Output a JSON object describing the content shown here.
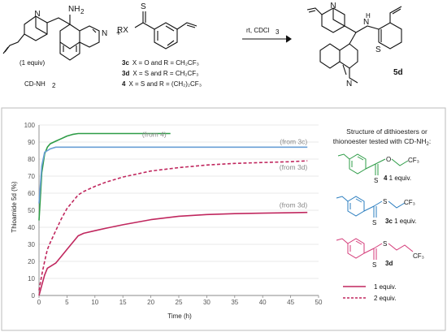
{
  "reaction": {
    "reactant1_label": "CD-NH",
    "reactant1_sub": "2",
    "reactant1_equiv": "(1 equiv)",
    "plus": "+",
    "reagent_group": "RX",
    "conditions": "rt, CDCl",
    "conditions_sub": "3",
    "product_label": "5d",
    "atoms": {
      "N": "N",
      "H": "H",
      "NH2": "NH",
      "S": "S"
    },
    "compounds": [
      {
        "id": "3c",
        "desc": "X = O and R = CH₂CF₃"
      },
      {
        "id": "3d",
        "desc": "X = S and R = CH₂CF₃"
      },
      {
        "id": "4",
        "desc": "X = S and R = (CH₂)₂CF₃"
      }
    ]
  },
  "structures_panel": {
    "title_line1": "Structure of dithioesters or",
    "title_line2": "thionoester tested with CD-NH",
    "title_sub": "2",
    "title_end": ":",
    "items": [
      {
        "num": "4",
        "equiv": " 1 equiv.",
        "color": "#2e9c47",
        "atom_O": "O",
        "atom_S": "S",
        "cf3": "CF₃"
      },
      {
        "num": "3c",
        "equiv": " 1 equiv.",
        "color": "#2a7dbf",
        "atom_S1": "S",
        "atom_S2": "S",
        "cf3": "CF₃"
      },
      {
        "num": "3d",
        "equiv": "",
        "color": "#d43a78",
        "atom_S1": "S",
        "atom_S2": "S",
        "cf3": "CF₃"
      }
    ],
    "legend": [
      {
        "label": "1 equiv.",
        "style": "solid"
      },
      {
        "label": "2 equiv.",
        "style": "dashed"
      }
    ]
  },
  "chart_data": {
    "type": "line",
    "xlabel": "Time (h)",
    "ylabel": "Thioamide 5d (%)",
    "xlim": [
      0,
      50
    ],
    "ylim": [
      0,
      100
    ],
    "xticks": [
      0,
      5,
      10,
      15,
      20,
      25,
      30,
      35,
      40,
      45,
      50
    ],
    "yticks": [
      0,
      10,
      20,
      30,
      40,
      50,
      60,
      70,
      80,
      90,
      100
    ],
    "grid": true,
    "series": [
      {
        "name": "",
        "annotation": "(from 4)",
        "color": "#2e9c47",
        "style": "solid",
        "x": [
          0,
          0.5,
          1,
          1.5,
          2,
          3,
          4,
          5,
          6,
          7,
          8,
          10,
          12,
          15,
          20,
          23.5
        ],
        "y": [
          44,
          72,
          83,
          87,
          89,
          90.5,
          92,
          93.5,
          94.5,
          95,
          95,
          95,
          95,
          95,
          95,
          95
        ]
      },
      {
        "name": "",
        "annotation": "(from 3c)",
        "color": "#6a9fd6",
        "style": "solid",
        "x": [
          0,
          0.5,
          1,
          2,
          3,
          4,
          6,
          10,
          20,
          30,
          40,
          48
        ],
        "y": [
          54,
          76,
          84,
          86,
          87,
          87,
          87,
          87,
          87,
          87,
          87,
          87
        ]
      },
      {
        "name": "",
        "annotation": "(from 3d)",
        "color": "#c0275e",
        "style": "dashed",
        "x": [
          0,
          0.5,
          1,
          1.5,
          2,
          3,
          4,
          5,
          6,
          7,
          8,
          10,
          12,
          15,
          20,
          25,
          30,
          35,
          40,
          45,
          48
        ],
        "y": [
          3,
          12,
          20,
          27,
          31,
          38,
          45,
          51,
          55,
          59,
          61,
          64,
          66.5,
          69.5,
          73,
          75,
          76.5,
          77.5,
          78,
          78.5,
          79
        ]
      },
      {
        "name": "",
        "annotation": "(from 3d)",
        "color": "#c0275e",
        "style": "solid",
        "x": [
          0,
          0.5,
          1,
          1.5,
          2,
          3,
          4,
          5,
          6,
          7,
          8,
          10,
          12,
          15,
          20,
          25,
          30,
          35,
          40,
          45,
          48
        ],
        "y": [
          0,
          6,
          12,
          16,
          17,
          19,
          23,
          27,
          31,
          35,
          36.5,
          38,
          39.5,
          41.5,
          44.5,
          46.5,
          47.5,
          48,
          48.3,
          48.5,
          48.7
        ]
      }
    ]
  }
}
